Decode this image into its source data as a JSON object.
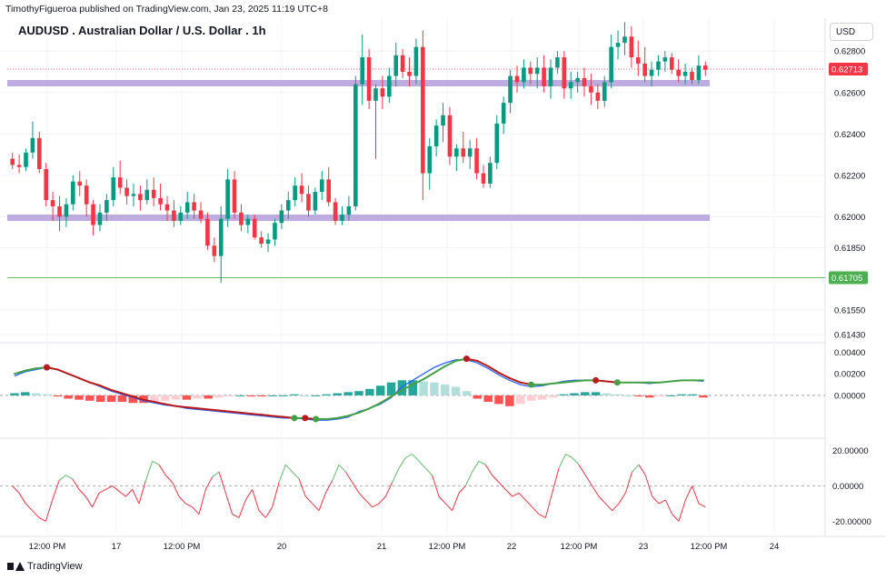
{
  "header": {
    "published": "TimothyFigueroa published on TradingView.com, Jan 23, 2025 11:19 UTC+8",
    "title": "AUDUSD . Australian Dollar / U.S. Dollar . 1h",
    "currency": "USD"
  },
  "footer": {
    "brand": "TradingView"
  },
  "colors": {
    "bull": "#089981",
    "bear": "#f23645",
    "zone": "#b39ddb",
    "macd_line": "#2962ff",
    "macd_signal_up": "#43a047",
    "macd_signal_down": "#b71c1c",
    "stoch": "#f23645",
    "stoch_up": "#66bb6a",
    "price_line": "#66bb6a"
  },
  "chart_data": [
    {
      "type": "candlestick",
      "name": "AUDUSD 1h",
      "ylim": [
        0.614,
        0.6288
      ],
      "y_ticks": [
        "0.62800",
        "0.62600",
        "0.62400",
        "0.62200",
        "0.62000",
        "0.61850",
        "0.61550",
        "0.61430"
      ],
      "current_price": "0.62713",
      "marked_level": "0.61705",
      "support_zones": [
        0.62645,
        0.61995
      ],
      "x_ticks": [
        "12:00 PM",
        "17",
        "12:00 PM",
        "20",
        "21",
        "12:00 PM",
        "22",
        "12:00 PM",
        "23",
        "12:00 PM",
        "24"
      ],
      "candles": [
        [
          0.6228,
          0.6231,
          0.6223,
          0.6225
        ],
        [
          0.6225,
          0.623,
          0.6221,
          0.6224
        ],
        [
          0.6224,
          0.6233,
          0.6222,
          0.6231
        ],
        [
          0.6231,
          0.6246,
          0.6228,
          0.6238
        ],
        [
          0.6238,
          0.6241,
          0.6221,
          0.6223
        ],
        [
          0.6223,
          0.6226,
          0.6205,
          0.6208
        ],
        [
          0.6208,
          0.6212,
          0.6198,
          0.6205
        ],
        [
          0.6205,
          0.621,
          0.6193,
          0.62
        ],
        [
          0.62,
          0.6209,
          0.6195,
          0.6206
        ],
        [
          0.6206,
          0.622,
          0.6203,
          0.6217
        ],
        [
          0.6217,
          0.6222,
          0.621,
          0.6215
        ],
        [
          0.6215,
          0.6218,
          0.62,
          0.6206
        ],
        [
          0.6206,
          0.6208,
          0.6191,
          0.6196
        ],
        [
          0.6196,
          0.6206,
          0.6193,
          0.6202
        ],
        [
          0.6202,
          0.6211,
          0.6198,
          0.6208
        ],
        [
          0.6208,
          0.6224,
          0.6205,
          0.6219
        ],
        [
          0.6219,
          0.6227,
          0.6211,
          0.6214
        ],
        [
          0.6214,
          0.6218,
          0.6206,
          0.621
        ],
        [
          0.621,
          0.6216,
          0.6205,
          0.6211
        ],
        [
          0.6211,
          0.6215,
          0.6203,
          0.6208
        ],
        [
          0.6208,
          0.6218,
          0.6206,
          0.6213
        ],
        [
          0.6213,
          0.6219,
          0.6205,
          0.6209
        ],
        [
          0.6209,
          0.6216,
          0.6203,
          0.6206
        ],
        [
          0.6206,
          0.621,
          0.6198,
          0.6203
        ],
        [
          0.6203,
          0.6208,
          0.6195,
          0.6198
        ],
        [
          0.6198,
          0.6205,
          0.6196,
          0.6202
        ],
        [
          0.6202,
          0.6212,
          0.6199,
          0.6207
        ],
        [
          0.6207,
          0.6211,
          0.6199,
          0.6203
        ],
        [
          0.6203,
          0.6207,
          0.6197,
          0.6199
        ],
        [
          0.6199,
          0.6202,
          0.6184,
          0.6186
        ],
        [
          0.6186,
          0.619,
          0.6178,
          0.6181
        ],
        [
          0.6181,
          0.6205,
          0.6168,
          0.6199
        ],
        [
          0.6199,
          0.6223,
          0.6195,
          0.6218
        ],
        [
          0.6218,
          0.6222,
          0.6199,
          0.6202
        ],
        [
          0.6202,
          0.6206,
          0.6193,
          0.6196
        ],
        [
          0.6196,
          0.6201,
          0.6192,
          0.6199
        ],
        [
          0.6199,
          0.6201,
          0.6189,
          0.619
        ],
        [
          0.619,
          0.6193,
          0.6185,
          0.6187
        ],
        [
          0.6187,
          0.6192,
          0.6183,
          0.6189
        ],
        [
          0.6189,
          0.6199,
          0.6186,
          0.6197
        ],
        [
          0.6197,
          0.6206,
          0.6194,
          0.6203
        ],
        [
          0.6203,
          0.6212,
          0.6199,
          0.6208
        ],
        [
          0.6208,
          0.6219,
          0.6205,
          0.6215
        ],
        [
          0.6215,
          0.6221,
          0.6207,
          0.6211
        ],
        [
          0.6211,
          0.6215,
          0.62,
          0.6203
        ],
        [
          0.6203,
          0.6214,
          0.6201,
          0.6212
        ],
        [
          0.6212,
          0.6222,
          0.6208,
          0.6218
        ],
        [
          0.6218,
          0.6224,
          0.6205,
          0.6207
        ],
        [
          0.6207,
          0.6209,
          0.6196,
          0.6198
        ],
        [
          0.6198,
          0.6205,
          0.6196,
          0.6201
        ],
        [
          0.6201,
          0.621,
          0.6198,
          0.6205
        ],
        [
          0.6205,
          0.6268,
          0.6203,
          0.6264
        ],
        [
          0.6264,
          0.6288,
          0.6254,
          0.6277
        ],
        [
          0.6277,
          0.6281,
          0.6252,
          0.6256
        ],
        [
          0.6256,
          0.6264,
          0.6228,
          0.6262
        ],
        [
          0.6262,
          0.6268,
          0.6252,
          0.6258
        ],
        [
          0.6258,
          0.6272,
          0.6255,
          0.6268
        ],
        [
          0.6268,
          0.6284,
          0.6263,
          0.6278
        ],
        [
          0.6278,
          0.6281,
          0.6267,
          0.627
        ],
        [
          0.627,
          0.6277,
          0.6263,
          0.6268
        ],
        [
          0.6268,
          0.6286,
          0.6264,
          0.6282
        ],
        [
          0.6282,
          0.629,
          0.6208,
          0.6221
        ],
        [
          0.6221,
          0.6238,
          0.6213,
          0.6234
        ],
        [
          0.6234,
          0.6247,
          0.6229,
          0.6244
        ],
        [
          0.6244,
          0.6255,
          0.6236,
          0.6249
        ],
        [
          0.6249,
          0.6253,
          0.6225,
          0.6229
        ],
        [
          0.6229,
          0.6235,
          0.6222,
          0.6233
        ],
        [
          0.6233,
          0.6241,
          0.6226,
          0.6229
        ],
        [
          0.6229,
          0.6237,
          0.6223,
          0.6233
        ],
        [
          0.6233,
          0.6238,
          0.6218,
          0.6221
        ],
        [
          0.6221,
          0.6225,
          0.6214,
          0.6216
        ],
        [
          0.6216,
          0.6229,
          0.6214,
          0.6226
        ],
        [
          0.6226,
          0.6249,
          0.6223,
          0.6245
        ],
        [
          0.6245,
          0.6258,
          0.624,
          0.6255
        ],
        [
          0.6255,
          0.6271,
          0.625,
          0.6268
        ],
        [
          0.6268,
          0.6273,
          0.626,
          0.6265
        ],
        [
          0.6265,
          0.6276,
          0.6262,
          0.6272
        ],
        [
          0.6272,
          0.6275,
          0.6264,
          0.6269
        ],
        [
          0.6269,
          0.6277,
          0.6262,
          0.6272
        ],
        [
          0.6272,
          0.6278,
          0.626,
          0.6263
        ],
        [
          0.6263,
          0.6276,
          0.6257,
          0.6272
        ],
        [
          0.6272,
          0.628,
          0.6269,
          0.6277
        ],
        [
          0.6277,
          0.628,
          0.6257,
          0.6262
        ],
        [
          0.6262,
          0.627,
          0.6257,
          0.6265
        ],
        [
          0.6265,
          0.627,
          0.626,
          0.6267
        ],
        [
          0.6267,
          0.6272,
          0.6258,
          0.6263
        ],
        [
          0.6263,
          0.6269,
          0.6254,
          0.626
        ],
        [
          0.626,
          0.6264,
          0.6252,
          0.6256
        ],
        [
          0.6256,
          0.6268,
          0.6253,
          0.6265
        ],
        [
          0.6265,
          0.6288,
          0.6262,
          0.6282
        ],
        [
          0.6282,
          0.629,
          0.6276,
          0.6284
        ],
        [
          0.6284,
          0.6294,
          0.6278,
          0.6287
        ],
        [
          0.6287,
          0.6292,
          0.6272,
          0.6277
        ],
        [
          0.6277,
          0.6285,
          0.6268,
          0.6274
        ],
        [
          0.6274,
          0.6282,
          0.6265,
          0.6268
        ],
        [
          0.6268,
          0.6275,
          0.6263,
          0.6271
        ],
        [
          0.6271,
          0.6278,
          0.6268,
          0.6275
        ],
        [
          0.6275,
          0.628,
          0.627,
          0.6277
        ],
        [
          0.6277,
          0.6279,
          0.6269,
          0.6271
        ],
        [
          0.6271,
          0.6276,
          0.6265,
          0.6268
        ],
        [
          0.6268,
          0.6274,
          0.6264,
          0.627
        ],
        [
          0.627,
          0.6272,
          0.6264,
          0.6266
        ],
        [
          0.6266,
          0.6278,
          0.6264,
          0.6273
        ],
        [
          0.6273,
          0.6275,
          0.6268,
          0.6271
        ]
      ]
    },
    {
      "type": "line",
      "name": "MACD",
      "ylim": [
        -0.00038,
        0.00048
      ],
      "y_ticks": [
        "0.00400",
        "0.00200",
        "0.00000"
      ],
      "macd": [
        0.00018,
        0.00022,
        0.00024,
        0.00026,
        0.00024,
        0.0002,
        0.00016,
        0.00012,
        8e-05,
        4e-05,
        1e-05,
        -2e-05,
        -5e-05,
        -7e-05,
        -9e-05,
        -0.0001,
        -0.00012,
        -0.00013,
        -0.00014,
        -0.00015,
        -0.00016,
        -0.00017,
        -0.00018,
        -0.00019,
        -0.0002,
        -0.00021,
        -0.00021,
        -0.00022,
        -0.00023,
        -0.00023,
        -0.00022,
        -0.0002,
        -0.00015,
        -0.00012,
        -8e-05,
        -2e-05,
        8e-05,
        0.00014,
        0.0002,
        0.00026,
        0.0003,
        0.00033,
        0.00033,
        0.0003,
        0.00025,
        0.00019,
        0.00014,
        0.0001,
        8e-05,
        9e-05,
        0.00011,
        0.00013,
        0.00014,
        0.00014,
        0.00014,
        0.00013,
        0.00012,
        0.00012,
        0.00012,
        0.00011,
        0.00012,
        0.00013,
        0.00014,
        0.00014,
        0.00013
      ],
      "signal": [
        0.0002,
        0.00023,
        0.00025,
        0.00026,
        0.00024,
        0.0002,
        0.00016,
        0.00012,
        9e-05,
        5e-05,
        2e-05,
        -1e-05,
        -4e-05,
        -6e-05,
        -8e-05,
        -0.0001,
        -0.00011,
        -0.00012,
        -0.00013,
        -0.00014,
        -0.00015,
        -0.00016,
        -0.00017,
        -0.00018,
        -0.00019,
        -0.0002,
        -0.00021,
        -0.00021,
        -0.00022,
        -0.00022,
        -0.00021,
        -0.00019,
        -0.00016,
        -0.00012,
        -7e-05,
        -1e-05,
        5e-05,
        0.0001,
        0.00015,
        0.00021,
        0.00027,
        0.00032,
        0.00034,
        0.00032,
        0.00027,
        0.00021,
        0.00016,
        0.00012,
        0.0001,
        0.0001,
        0.00011,
        0.00012,
        0.00013,
        0.00014,
        0.00014,
        0.00013,
        0.00012,
        0.00012,
        0.00012,
        0.00012,
        0.00012,
        0.00013,
        0.00014,
        0.00014,
        0.00014
      ],
      "histogram": [
        2e-05,
        3e-05,
        2e-05,
        1e-05,
        -1e-05,
        -3e-05,
        -4e-05,
        -5e-05,
        -6e-05,
        -6e-05,
        -6e-05,
        -7e-05,
        -7e-05,
        -6e-05,
        -5e-05,
        -4e-05,
        -4e-05,
        -3e-05,
        -3e-05,
        -2e-05,
        -1e-05,
        0.0,
        -1e-05,
        -1e-05,
        0.0,
        0.0,
        1e-05,
        0.0,
        0.0,
        1e-05,
        2e-05,
        3e-05,
        4e-05,
        6e-05,
        9e-05,
        0.00012,
        0.00014,
        0.00014,
        0.00013,
        0.00012,
        0.0001,
        8e-05,
        4e-05,
        -3e-05,
        -6e-05,
        -8e-05,
        -0.0001,
        -8e-05,
        -5e-05,
        -4e-05,
        -2e-05,
        1e-05,
        2e-05,
        3e-05,
        3e-05,
        2e-05,
        1e-05,
        0.0,
        -1e-05,
        -2e-05,
        -1e-05,
        0.0,
        1e-05,
        1e-05,
        -2e-05
      ]
    },
    {
      "type": "line",
      "name": "Oscillator",
      "ylim": [
        -26,
        26
      ],
      "y_ticks": [
        "20.00000",
        "0.00000",
        "-20.00000"
      ],
      "values": [
        0,
        -4,
        -10,
        -14,
        -18,
        -20,
        -8,
        3,
        6,
        4,
        -2,
        -6,
        -12,
        -4,
        -2,
        0,
        -3,
        -6,
        -2,
        -10,
        3,
        14,
        12,
        6,
        2,
        -6,
        -10,
        -12,
        -16,
        -2,
        5,
        8,
        -4,
        -16,
        -18,
        -8,
        -2,
        -14,
        -18,
        -12,
        2,
        12,
        8,
        4,
        -6,
        -10,
        -14,
        -4,
        3,
        12,
        8,
        2,
        -4,
        -8,
        -12,
        -10,
        -6,
        2,
        10,
        16,
        18,
        14,
        10,
        6,
        -6,
        -10,
        -14,
        -4,
        0,
        8,
        14,
        12,
        6,
        2,
        -2,
        -6,
        -4,
        -8,
        -12,
        -16,
        -18,
        -4,
        10,
        18,
        16,
        12,
        6,
        0,
        -6,
        -10,
        -14,
        -10,
        -4,
        8,
        12,
        6,
        -6,
        -10,
        -8,
        -16,
        -20,
        -8,
        0,
        -10,
        -12
      ]
    }
  ]
}
